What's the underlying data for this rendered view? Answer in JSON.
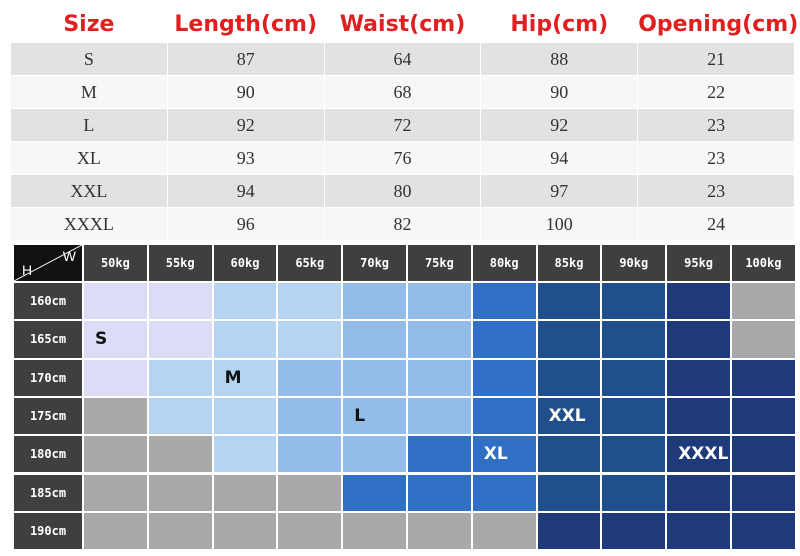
{
  "size_table": {
    "headers": [
      "Size",
      "Length(cm)",
      "Waist(cm)",
      "Hip(cm)",
      "Opening(cm)"
    ],
    "rows": [
      [
        "S",
        "87",
        "64",
        "88",
        "21"
      ],
      [
        "M",
        "90",
        "68",
        "90",
        "22"
      ],
      [
        "L",
        "92",
        "72",
        "92",
        "23"
      ],
      [
        "XL",
        "93",
        "76",
        "94",
        "23"
      ],
      [
        "XXL",
        "94",
        "80",
        "97",
        "23"
      ],
      [
        "XXXL",
        "96",
        "82",
        "100",
        "24"
      ]
    ],
    "header_color": "#e02020"
  },
  "size_grid": {
    "corner_w": "W",
    "corner_h": "H",
    "weights": [
      "50kg",
      "55kg",
      "60kg",
      "65kg",
      "70kg",
      "75kg",
      "80kg",
      "85kg",
      "90kg",
      "95kg",
      "100kg"
    ],
    "heights": [
      "160cm",
      "165cm",
      "170cm",
      "175cm",
      "180cm",
      "185cm",
      "190cm"
    ],
    "palette": {
      "S": "#dcdcf7",
      "M": "#b4d4f1",
      "L": "#94bce8",
      "XL": "#2f6fc4",
      "XXL": "#1f4f8c",
      "XXXL": "#1f3a7a",
      "none": "#a9a9a9"
    },
    "cells": [
      [
        "S",
        "S",
        "M",
        "M",
        "L",
        "L",
        "XL",
        "XXL",
        "XXL",
        "XXXL",
        "none"
      ],
      [
        "S",
        "S",
        "M",
        "M",
        "L",
        "L",
        "XL",
        "XXL",
        "XXL",
        "XXXL",
        "none"
      ],
      [
        "S",
        "M",
        "M",
        "L",
        "L",
        "L",
        "XL",
        "XXL",
        "XXL",
        "XXXL",
        "XXXL"
      ],
      [
        "none",
        "M",
        "M",
        "L",
        "L",
        "L",
        "XL",
        "XXL",
        "XXL",
        "XXXL",
        "XXXL"
      ],
      [
        "none",
        "none",
        "M",
        "L",
        "L",
        "XL",
        "XL",
        "XXL",
        "XXL",
        "XXXL",
        "XXXL"
      ],
      [
        "none",
        "none",
        "none",
        "none",
        "XL",
        "XL",
        "XL",
        "XXL",
        "XXL",
        "XXXL",
        "XXXL"
      ],
      [
        "none",
        "none",
        "none",
        "none",
        "none",
        "none",
        "none",
        "XXXL",
        "XXXL",
        "XXXL",
        "XXXL"
      ]
    ],
    "labels": [
      {
        "text": "S",
        "row": 1,
        "col": 0,
        "color": "#111111"
      },
      {
        "text": "M",
        "row": 2,
        "col": 2,
        "color": "#111111"
      },
      {
        "text": "L",
        "row": 3,
        "col": 4,
        "color": "#111111"
      },
      {
        "text": "XXL",
        "row": 3,
        "col": 7,
        "color": "#ffffff"
      },
      {
        "text": "XL",
        "row": 4,
        "col": 6,
        "color": "#ffffff"
      },
      {
        "text": "XXXL",
        "row": 4,
        "col": 9,
        "color": "#ffffff"
      }
    ]
  }
}
